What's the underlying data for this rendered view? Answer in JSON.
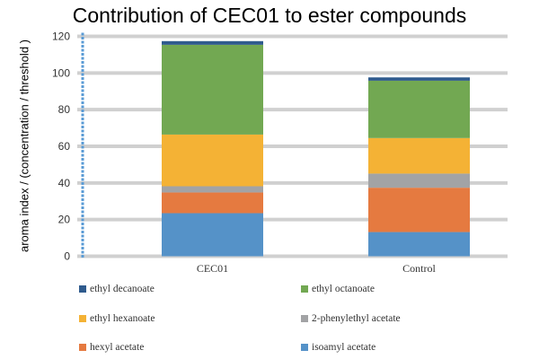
{
  "chart_data": {
    "type": "bar",
    "stacked": true,
    "title": "Contribution of CEC01 to ester compounds",
    "xlabel": "",
    "ylabel": "aroma index / (concentration / threshold )",
    "ylim": [
      0,
      120
    ],
    "yticks": [
      0,
      20,
      40,
      60,
      80,
      100,
      120
    ],
    "grid": true,
    "legend_position": "bottom",
    "categories": [
      "CEC01",
      "Control"
    ],
    "series": [
      {
        "name": "isoamyl acetate",
        "color": "#5592c8",
        "values": [
          23.5,
          13.2
        ]
      },
      {
        "name": "hexyl acetate",
        "color": "#e57a40",
        "values": [
          11.3,
          24.2
        ]
      },
      {
        "name": "2-phenylethyl acetate",
        "color": "#a2a3a5",
        "values": [
          3.4,
          7.7
        ]
      },
      {
        "name": "ethyl hexanoate",
        "color": "#f4b235",
        "values": [
          28.2,
          19.4
        ]
      },
      {
        "name": "ethyl octanoate",
        "color": "#72a852",
        "values": [
          49.0,
          31.3
        ]
      },
      {
        "name": "ethyl decanoate",
        "color": "#2f5b8d",
        "values": [
          2.0,
          1.8
        ]
      }
    ],
    "legend_order": [
      "ethyl decanoate",
      "ethyl octanoate",
      "ethyl hexanoate",
      "2-phenylethyl acetate",
      "hexyl acetate",
      "isoamyl acetate"
    ]
  }
}
